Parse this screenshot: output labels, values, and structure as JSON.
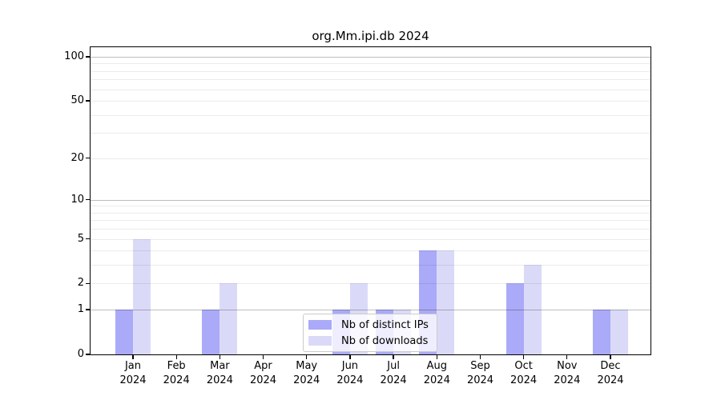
{
  "figure": {
    "title": "org.Mm.ipi.db 2024"
  },
  "chart_data": {
    "type": "bar",
    "title": "org.Mm.ipi.db 2024",
    "categories": [
      "Jan 2024",
      "Feb 2024",
      "Mar 2024",
      "Apr 2024",
      "May 2024",
      "Jun 2024",
      "Jul 2024",
      "Aug 2024",
      "Sep 2024",
      "Oct 2024",
      "Nov 2024",
      "Dec 2024"
    ],
    "series": [
      {
        "name": "Nb of distinct IPs",
        "color": "#aaaaf8",
        "values": [
          1,
          0,
          1,
          0,
          0,
          1,
          1,
          4,
          0,
          2,
          0,
          1
        ]
      },
      {
        "name": "Nb of downloads",
        "color": "#dadaf8",
        "values": [
          5,
          0,
          2,
          0,
          0,
          2,
          1,
          4,
          0,
          3,
          0,
          1
        ]
      }
    ],
    "xlabel": "",
    "ylabel": "",
    "y_axis": {
      "scale": "log1p",
      "ylim": [
        0,
        116
      ],
      "ticks": [
        100,
        50,
        20,
        10,
        5,
        2,
        1,
        0
      ],
      "major_gridlines": [
        1,
        10,
        100
      ],
      "minor_gridlines": [
        2,
        3,
        4,
        5,
        6,
        7,
        8,
        9,
        20,
        30,
        40,
        50,
        60,
        70,
        80,
        90
      ]
    },
    "x_axis": {
      "months": [
        "Jan",
        "Feb",
        "Mar",
        "Apr",
        "May",
        "Jun",
        "Jul",
        "Aug",
        "Sep",
        "Oct",
        "Nov",
        "Dec"
      ],
      "year": "2024"
    },
    "grid": true,
    "legend": {
      "position": "lower center",
      "entries": [
        "Nb of distinct IPs",
        "Nb of downloads"
      ]
    }
  },
  "colors": {
    "bar_ips": "#aaaaf8",
    "bar_downloads": "#dadaf8",
    "grid_minor": "rgba(0,0,0,0.08)",
    "grid_major": "rgba(0,0,0,0.26)",
    "spine": "#000000",
    "background": "#ffffff"
  }
}
